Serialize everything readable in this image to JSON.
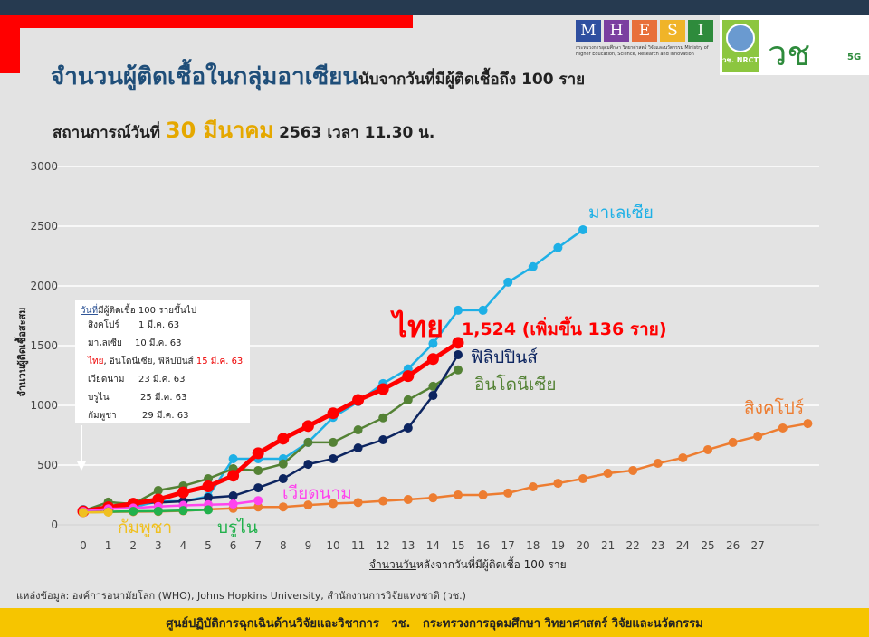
{
  "header": {
    "title_main": "จำนวนผู้ติดเชื้อในกลุ่มอาเซียน",
    "title_sub": "นับจากวันที่มีผู้ติดเชื้อถึง 100 ราย",
    "situation_prefix": "สถานการณ์วันที่",
    "situation_date": "30 มีนาคม",
    "situation_suffix": "2563 เวลา 11.30 น.",
    "logos": {
      "mhesi_letters": [
        "M",
        "H",
        "E",
        "S",
        "I"
      ],
      "mhesi_colors": [
        "#2f4fa0",
        "#7b3fa0",
        "#e8703a",
        "#f0b428",
        "#2e8b3c"
      ],
      "mhesi_caption": "กระทรวงการอุดมศึกษา วิทยาศาสตร์ วิจัยและนวัตกรรม Ministry of Higher Education, Science, Research and Innovation",
      "nrct": "วช. NRCT",
      "wc": "วช",
      "wc_5g": "5G"
    }
  },
  "legend_box": {
    "title_underlined": "วันที่",
    "title_rest": "มีผู้ติดเชื้อ 100 รายขึ้นไป",
    "rows": [
      {
        "name": "สิงคโปร์",
        "date": "1 มี.ค. 63"
      },
      {
        "name": "มาเลเซีย",
        "date": "10 มี.ค. 63"
      },
      {
        "name_red": "ไทย",
        "name": ", อินโดนีเซีย, ฟิลิปปินส์",
        "date": "15 มี.ค. 63"
      },
      {
        "name": "เวียดนาม",
        "date": "23 มี.ค. 63"
      },
      {
        "name": "บรูไน",
        "date": "25 มี.ค. 63"
      },
      {
        "name": "กัมพูชา",
        "date": "29 มี.ค. 63"
      }
    ]
  },
  "annotations": {
    "thai_label": "ไทย",
    "thai_value": "1,524 (เพิ่มขึ้น 136 ราย)"
  },
  "chart_data": {
    "type": "line",
    "ylabel": "จำนวนผู้ติดเชื้อสะสม",
    "xlabel_underlined": "จำนวนวัน",
    "xlabel_rest": "หลังจากวันที่มีผู้ติดเชื้อ 100 ราย",
    "ylim": [
      0,
      3000
    ],
    "yticks": [
      0,
      500,
      1000,
      1500,
      2000,
      2500,
      3000
    ],
    "xticks": [
      0,
      1,
      2,
      3,
      4,
      5,
      6,
      7,
      8,
      9,
      10,
      11,
      12,
      13,
      14,
      15,
      16,
      17,
      18,
      19,
      20,
      21,
      22,
      23,
      24,
      25,
      26,
      27
    ],
    "grid": true,
    "series": [
      {
        "name": "สิงคโปร์",
        "color": "#ed7d31",
        "values": [
          106,
          108,
          110,
          112,
          117,
          130,
          138,
          150,
          150,
          166,
          178,
          187,
          200,
          212,
          226,
          250,
          250,
          266,
          318,
          348,
          386,
          432,
          455,
          515,
          561,
          629,
          690,
          742,
          811,
          848
        ]
      },
      {
        "name": "มาเลเซีย",
        "color": "#1eb0e6",
        "values": [
          129,
          149,
          149,
          197,
          197,
          238,
          553,
          553,
          553,
          690,
          900,
          1030,
          1183,
          1306,
          1518,
          1796,
          1796,
          2031,
          2161,
          2320,
          2470
        ]
      },
      {
        "name": "อินโดนีเซีย",
        "color": "#548235",
        "values": [
          117,
          190,
          174,
          288,
          326,
          386,
          470,
          455,
          510,
          690,
          690,
          795,
          896,
          1046,
          1160,
          1297
        ]
      },
      {
        "name": "ฟิลิปปินส์",
        "color": "#0d2560",
        "values": [
          120,
          140,
          187,
          187,
          197,
          227,
          242,
          310,
          386,
          507,
          553,
          644,
          712,
          811,
          1083,
          1424
        ]
      },
      {
        "name": "ไทย",
        "color": "#ff0000",
        "values": [
          114,
          147,
          177,
          212,
          272,
          322,
          411,
          599,
          721,
          827,
          934,
          1045,
          1136,
          1245,
          1388,
          1524
        ]
      },
      {
        "name": "เวียดนาม",
        "color": "#ff44ee",
        "values": [
          113,
          134,
          141,
          153,
          163,
          169,
          174,
          203
        ]
      },
      {
        "name": "บรูไน",
        "color": "#22b14c",
        "values": [
          104,
          109,
          114,
          115,
          120,
          126
        ]
      },
      {
        "name": "กัมพูชา",
        "color": "#f0c020",
        "values": [
          103,
          107
        ]
      }
    ]
  },
  "source": "แหล่งข้อมูล: องค์การอนามัยโลก (WHO), Johns Hopkins University, สำนักงานการวิจัยแห่งชาติ (วช.)",
  "footer": "ศูนย์ปฏิบัติการฉุกเฉินด้านวิจัยและวิชาการ   วช.   กระทรวงการอุดมศึกษา วิทยาศาสตร์ วิจัยและนวัตกรรม"
}
